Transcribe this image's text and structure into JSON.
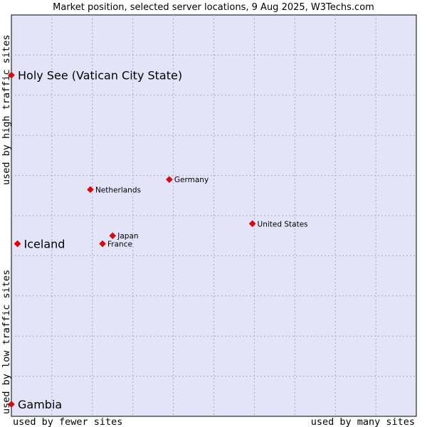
{
  "chart_data": {
    "type": "scatter",
    "title": "Market position, selected server locations, 9 Aug 2025, W3Techs.com",
    "xlabel_left": "used by fewer sites",
    "xlabel_right": "used by many sites",
    "ylabel_bottom": "used by low traffic sites",
    "ylabel_top": "used by high traffic sites",
    "xlim": [
      0,
      10
    ],
    "ylim": [
      0,
      10
    ],
    "grid": true,
    "marker_color": "#e8000b",
    "plot_color": "#e4e4f8",
    "points": [
      {
        "name": "Holy See (Vatican City State)",
        "x": 0.0,
        "y": 8.5,
        "size": "large"
      },
      {
        "name": "Germany",
        "x": 3.9,
        "y": 5.9,
        "size": "small"
      },
      {
        "name": "Netherlands",
        "x": 1.95,
        "y": 5.65,
        "size": "small"
      },
      {
        "name": "United States",
        "x": 5.95,
        "y": 4.8,
        "size": "small"
      },
      {
        "name": "Japan",
        "x": 2.5,
        "y": 4.5,
        "size": "small"
      },
      {
        "name": "France",
        "x": 2.25,
        "y": 4.3,
        "size": "small"
      },
      {
        "name": "Iceland",
        "x": 0.15,
        "y": 4.3,
        "size": "large"
      },
      {
        "name": "Gambia",
        "x": 0.0,
        "y": 0.3,
        "size": "large"
      }
    ]
  }
}
